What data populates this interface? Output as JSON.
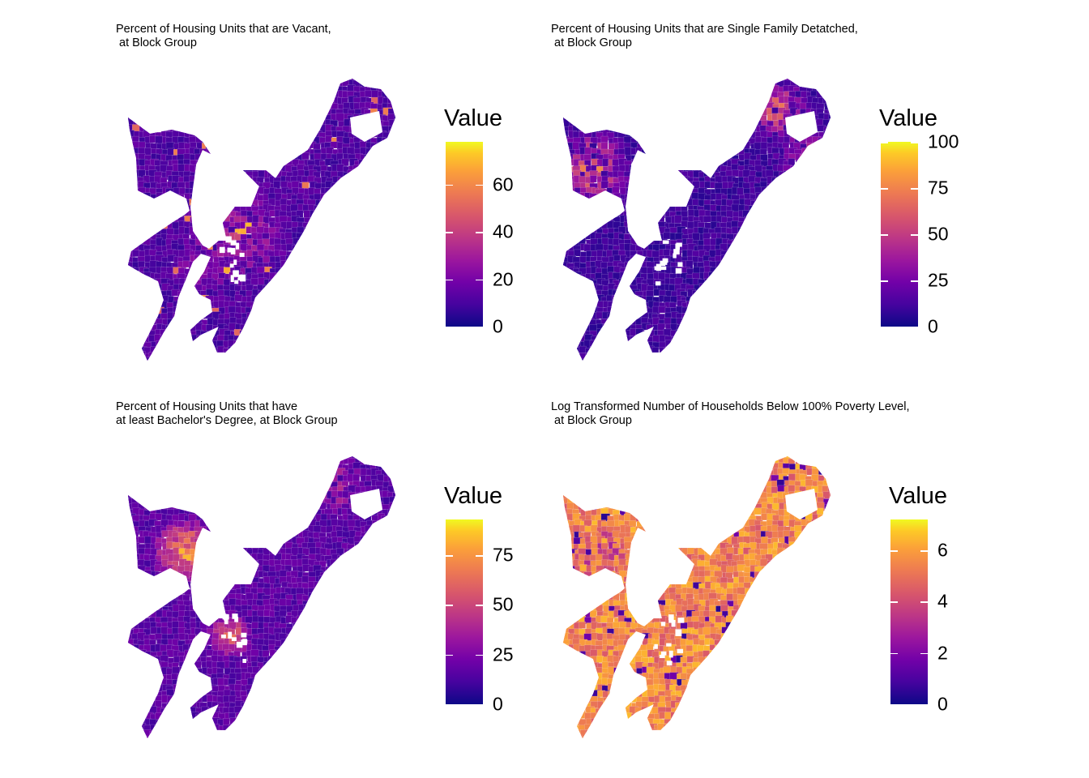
{
  "panels": [
    {
      "title": "Percent of Housing Units that are Vacant,\n at Block Group",
      "legend": {
        "title": "Value",
        "min": 0,
        "max": 78,
        "ticks": [
          0,
          20,
          40,
          60
        ]
      },
      "scheme": "vacant"
    },
    {
      "title": "Percent of Housing Units that are Single Family Detatched,\n at Block Group",
      "legend": {
        "title": "Value",
        "min": 0,
        "max": 100,
        "ticks": [
          0,
          25,
          50,
          75,
          100
        ]
      },
      "scheme": "sfd"
    },
    {
      "title": "Percent of Housing Units that have\nat least Bachelor's Degree, at Block Group",
      "legend": {
        "title": "Value",
        "min": 0,
        "max": 93,
        "ticks": [
          0,
          25,
          50,
          75
        ]
      },
      "scheme": "bach"
    },
    {
      "title": "Log Transformed Number of Households Below 100% Poverty Level,\n at Block Group",
      "legend": {
        "title": "Value",
        "min": 0,
        "max": 7.2,
        "ticks": [
          0,
          2,
          4,
          6
        ]
      },
      "scheme": "pov"
    }
  ],
  "colors": {
    "plasma": [
      "#0d0887",
      "#46039f",
      "#7201a8",
      "#9c179e",
      "#bd3786",
      "#d8576b",
      "#ed7953",
      "#fb9f3a",
      "#fdca26",
      "#f0f921"
    ]
  }
}
